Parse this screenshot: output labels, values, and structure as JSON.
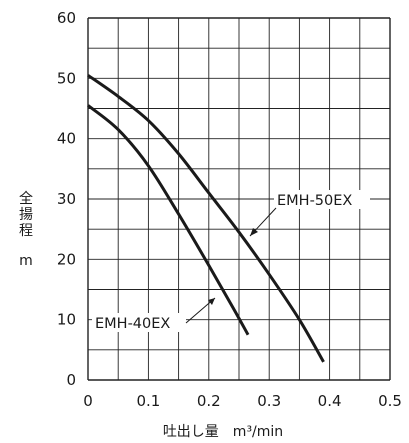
{
  "chart_data": {
    "type": "line",
    "xlabel": "吐出し量　m³/min",
    "ylabel_chars": [
      "全",
      "揚",
      "程"
    ],
    "ylabel_unit": "m",
    "xlim": [
      0,
      0.5
    ],
    "ylim": [
      0,
      60
    ],
    "x_ticks": [
      "0",
      "0.1",
      "0.2",
      "0.3",
      "0.4",
      "0.5"
    ],
    "y_ticks": [
      "0",
      "10",
      "20",
      "30",
      "40",
      "50",
      "60"
    ],
    "grid": true,
    "series": [
      {
        "name": "EMH-50EX",
        "points": [
          [
            0,
            50.5
          ],
          [
            0.05,
            47
          ],
          [
            0.1,
            43
          ],
          [
            0.15,
            37.5
          ],
          [
            0.2,
            31
          ],
          [
            0.25,
            24.5
          ],
          [
            0.3,
            17.5
          ],
          [
            0.35,
            10
          ],
          [
            0.39,
            3
          ]
        ]
      },
      {
        "name": "EMH-40EX",
        "points": [
          [
            0,
            45.5
          ],
          [
            0.05,
            41.5
          ],
          [
            0.1,
            35.5
          ],
          [
            0.15,
            27.5
          ],
          [
            0.2,
            19
          ],
          [
            0.24,
            12
          ],
          [
            0.265,
            7.5
          ]
        ]
      }
    ]
  }
}
